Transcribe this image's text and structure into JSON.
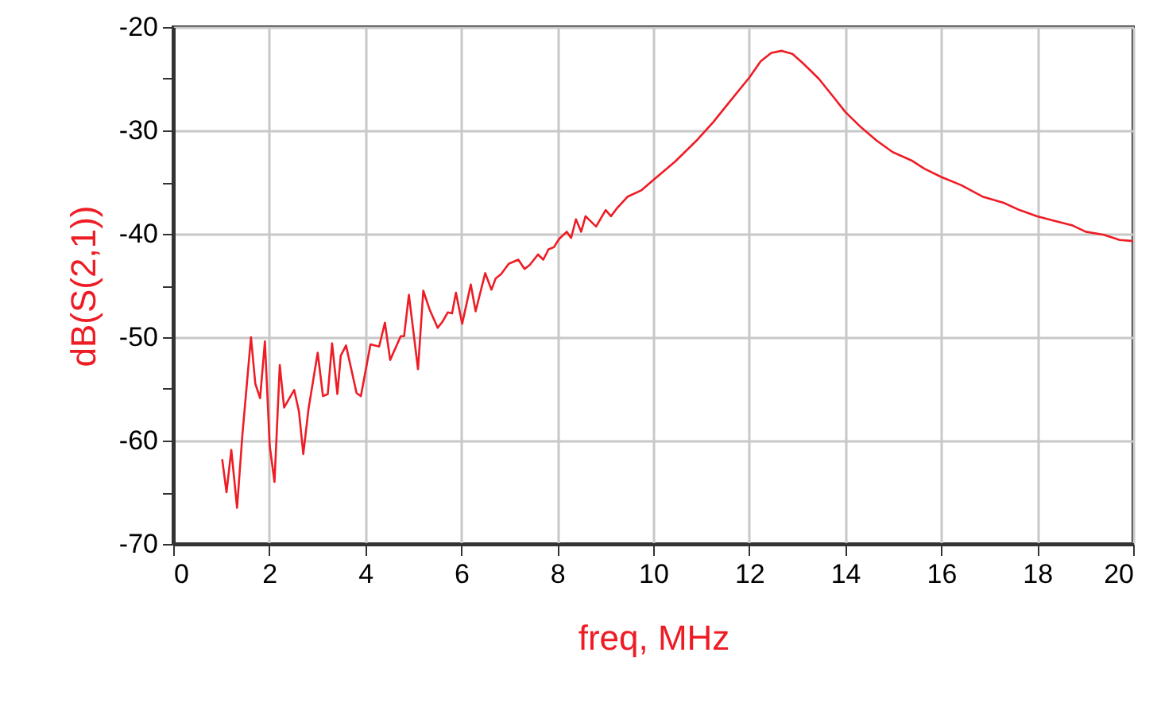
{
  "chart_data": {
    "type": "line",
    "xlabel": "freq, MHz",
    "ylabel": "dB(S(2,1))",
    "xlim": [
      0,
      20
    ],
    "xticks": [
      0,
      2,
      4,
      6,
      8,
      10,
      12,
      14,
      16,
      18,
      20
    ],
    "ylim": [
      -70,
      -20
    ],
    "yticks": [
      -70,
      {
        "value": -65,
        "label": null
      },
      -60,
      {
        "value": -55,
        "label": null
      },
      -50,
      {
        "value": -45,
        "label": null
      },
      -40,
      {
        "value": -35,
        "label": null
      },
      -30,
      {
        "value": -25,
        "label": null
      },
      -20
    ],
    "grid": true,
    "marker": "none",
    "line_style": "solid",
    "x": [
      1.02,
      1.11,
      1.21,
      1.33,
      1.44,
      1.62,
      1.71,
      1.81,
      1.91,
      2.01,
      2.11,
      2.22,
      2.31,
      2.52,
      2.62,
      2.71,
      2.82,
      3.01,
      3.12,
      3.22,
      3.31,
      3.42,
      3.49,
      3.6,
      3.82,
      3.91,
      4.11,
      4.29,
      4.41,
      4.52,
      4.74,
      4.81,
      4.91,
      5.1,
      5.21,
      5.34,
      5.51,
      5.61,
      5.72,
      5.81,
      5.89,
      6.02,
      6.2,
      6.3,
      6.5,
      6.63,
      6.72,
      6.83,
      6.99,
      7.19,
      7.32,
      7.43,
      7.6,
      7.71,
      7.82,
      7.93,
      8.04,
      8.2,
      8.29,
      8.39,
      8.5,
      8.59,
      8.81,
      9.01,
      9.12,
      9.25,
      9.47,
      9.75,
      10.0,
      10.46,
      10.92,
      11.25,
      11.58,
      12.0,
      12.24,
      12.46,
      12.68,
      12.9,
      13.12,
      13.45,
      13.78,
      14.0,
      14.33,
      14.66,
      14.99,
      15.38,
      15.65,
      16.0,
      16.42,
      16.86,
      17.3,
      17.63,
      18.0,
      18.41,
      18.74,
      19.01,
      19.39,
      19.72,
      20.0
    ],
    "series": [
      {
        "color": "#ee1c25",
        "values": [
          -61.8,
          -65.0,
          -60.9,
          -66.5,
          -59.5,
          -50.0,
          -54.5,
          -55.9,
          -50.4,
          -60.5,
          -64.0,
          -52.7,
          -56.8,
          -55.1,
          -57.2,
          -61.3,
          -56.9,
          -51.5,
          -55.7,
          -55.5,
          -50.6,
          -55.5,
          -51.8,
          -50.8,
          -55.4,
          -55.7,
          -50.7,
          -50.9,
          -48.6,
          -52.2,
          -49.9,
          -49.9,
          -45.9,
          -53.1,
          -45.5,
          -47.3,
          -49.1,
          -48.5,
          -47.6,
          -47.7,
          -45.7,
          -48.7,
          -44.9,
          -47.5,
          -43.8,
          -45.4,
          -44.3,
          -43.9,
          -42.9,
          -42.5,
          -43.4,
          -43.0,
          -42.0,
          -42.5,
          -41.5,
          -41.3,
          -40.5,
          -39.8,
          -40.4,
          -38.6,
          -39.8,
          -38.3,
          -39.3,
          -37.7,
          -38.3,
          -37.5,
          -36.4,
          -35.8,
          -34.8,
          -33.0,
          -30.9,
          -29.2,
          -27.3,
          -24.9,
          -23.3,
          -22.5,
          -22.3,
          -22.6,
          -23.5,
          -25.0,
          -26.9,
          -28.2,
          -29.7,
          -31.0,
          -32.1,
          -32.9,
          -33.7,
          -34.5,
          -35.3,
          -36.4,
          -37.0,
          -37.7,
          -38.3,
          -38.8,
          -39.2,
          -39.8,
          -40.1,
          -40.6,
          -40.7
        ]
      }
    ]
  }
}
